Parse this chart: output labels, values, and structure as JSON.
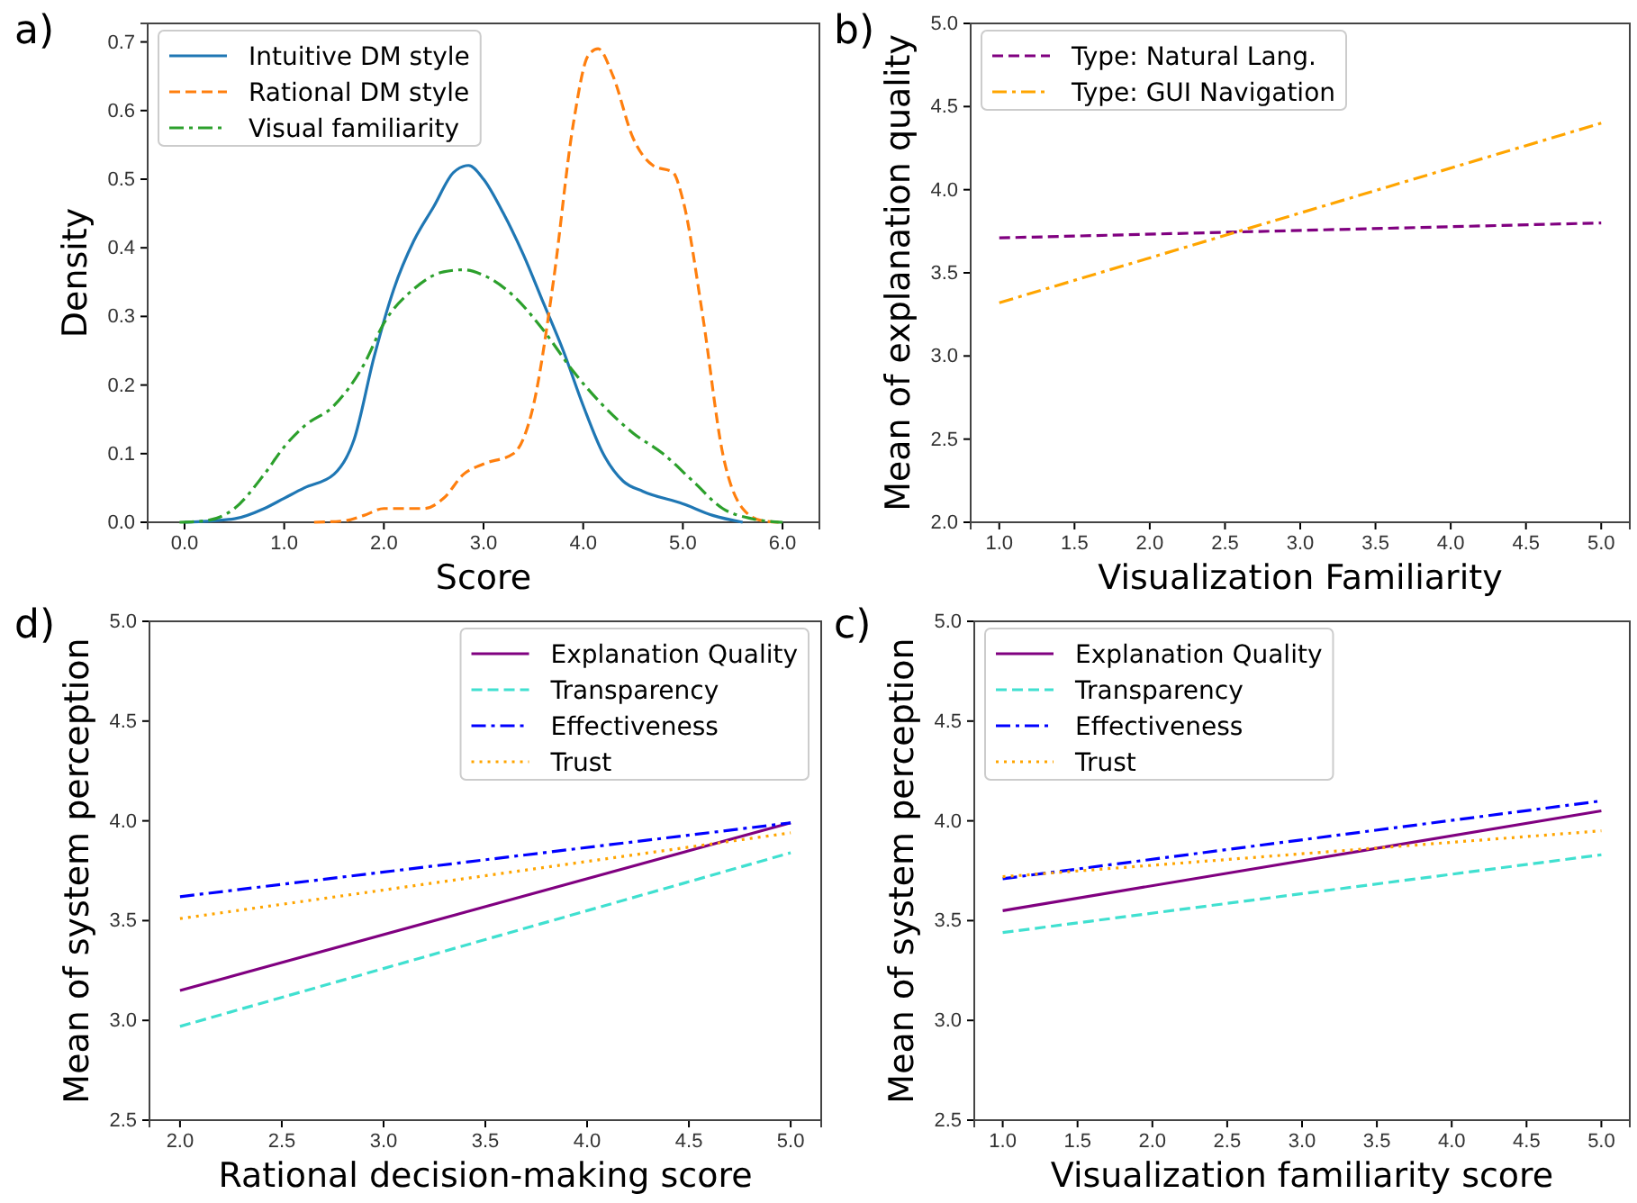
{
  "chart_data": [
    {
      "type": "line",
      "title": "a)",
      "xlabel": "Score",
      "ylabel": "Density",
      "xlim": [
        -0.37,
        6.37
      ],
      "ylim": [
        0,
        0.727
      ],
      "xticks": [
        {
          "value": 0,
          "label": "0.0"
        },
        {
          "value": 1,
          "label": "1.0"
        },
        {
          "value": 2,
          "label": "2.0"
        },
        {
          "value": 3,
          "label": "3.0"
        },
        {
          "value": 4,
          "label": "4.0"
        },
        {
          "value": 5,
          "label": "5.0"
        },
        {
          "value": 6,
          "label": "6.0"
        }
      ],
      "yticks": [
        {
          "value": 0,
          "label": "0.0"
        },
        0.1,
        0.2,
        0.3,
        0.4,
        0.5,
        0.6,
        0.7
      ],
      "legend": "top left",
      "series": [
        {
          "name": "Intuitive DM style",
          "color": "#1f77b4",
          "line_style": "solid",
          "x": [
            0,
            0.5,
            0.8,
            1.0,
            1.2,
            1.5,
            1.7,
            1.9,
            2.1,
            2.3,
            2.5,
            2.7,
            2.85,
            3.0,
            3.2,
            3.4,
            3.6,
            3.8,
            4.0,
            4.2,
            4.4,
            4.6,
            5.0,
            5.3,
            5.6
          ],
          "values": [
            0,
            0.005,
            0.02,
            0.035,
            0.05,
            0.07,
            0.12,
            0.24,
            0.34,
            0.41,
            0.46,
            0.51,
            0.52,
            0.5,
            0.45,
            0.39,
            0.32,
            0.25,
            0.17,
            0.1,
            0.06,
            0.045,
            0.027,
            0.01,
            0
          ]
        },
        {
          "name": "Rational DM style",
          "color": "#ff7f0e",
          "line_style": "dashed",
          "x": [
            1.3,
            1.6,
            1.8,
            2.0,
            2.4,
            2.6,
            2.8,
            3.0,
            3.3,
            3.5,
            3.7,
            3.9,
            4.05,
            4.15,
            4.3,
            4.5,
            4.7,
            4.9,
            5.0,
            5.2,
            5.4,
            5.6,
            5.8,
            6.0
          ],
          "values": [
            0,
            0.002,
            0.01,
            0.02,
            0.02,
            0.035,
            0.07,
            0.085,
            0.1,
            0.17,
            0.35,
            0.58,
            0.68,
            0.69,
            0.65,
            0.56,
            0.52,
            0.51,
            0.47,
            0.3,
            0.1,
            0.02,
            0.002,
            0
          ]
        },
        {
          "name": "Visual familiarity",
          "color": "#2ca02c",
          "line_style": "dashdot",
          "x": [
            -0.05,
            0.2,
            0.5,
            0.8,
            1.0,
            1.2,
            1.5,
            1.8,
            2.0,
            2.3,
            2.6,
            2.8,
            3.0,
            3.3,
            3.6,
            3.9,
            4.2,
            4.5,
            4.8,
            5.1,
            5.4,
            5.7,
            6.0
          ],
          "values": [
            0,
            0.002,
            0.02,
            0.07,
            0.11,
            0.14,
            0.17,
            0.23,
            0.29,
            0.34,
            0.365,
            0.368,
            0.36,
            0.33,
            0.28,
            0.22,
            0.17,
            0.13,
            0.1,
            0.06,
            0.02,
            0.005,
            0
          ]
        }
      ]
    },
    {
      "type": "line",
      "title": "b)",
      "xlabel": "Visualization Familiarity",
      "ylabel": "Mean of explanation quality",
      "xlim": [
        0.81,
        5.19
      ],
      "ylim": [
        2,
        5
      ],
      "xticks": [
        {
          "value": 1,
          "label": "1.0"
        },
        1.5,
        {
          "value": 2,
          "label": "2.0"
        },
        2.5,
        {
          "value": 3,
          "label": "3.0"
        },
        3.5,
        {
          "value": 4,
          "label": "4.0"
        },
        4.5,
        {
          "value": 5,
          "label": "5.0"
        }
      ],
      "yticks": [
        {
          "value": 2,
          "label": "2.0"
        },
        2.5,
        {
          "value": 3,
          "label": "3.0"
        },
        3.5,
        {
          "value": 4,
          "label": "4.0"
        },
        4.5,
        {
          "value": 5,
          "label": "5.0"
        }
      ],
      "legend": "top left",
      "series": [
        {
          "name": "Type: Natural Lang.",
          "color": "#800080",
          "line_style": "dashed",
          "x": [
            1,
            5
          ],
          "values": [
            3.71,
            3.8
          ]
        },
        {
          "name": "Type: GUI Navigation",
          "color": "#ffa500",
          "line_style": "dashdot",
          "x": [
            1,
            5
          ],
          "values": [
            3.32,
            4.4
          ]
        }
      ]
    },
    {
      "type": "line",
      "title": "d)",
      "xlabel": "Rational decision-making score",
      "ylabel": "Mean of system perception",
      "xlim": [
        1.85,
        5.15
      ],
      "ylim": [
        2.5,
        5
      ],
      "xticks": [
        {
          "value": 2,
          "label": "2.0"
        },
        2.5,
        {
          "value": 3,
          "label": "3.0"
        },
        3.5,
        {
          "value": 4,
          "label": "4.0"
        },
        4.5,
        {
          "value": 5,
          "label": "5.0"
        }
      ],
      "yticks": [
        2.5,
        {
          "value": 3,
          "label": "3.0"
        },
        3.5,
        {
          "value": 4,
          "label": "4.0"
        },
        4.5,
        {
          "value": 5,
          "label": "5.0"
        }
      ],
      "legend": "top right",
      "series": [
        {
          "name": "Explanation Quality",
          "color": "#800080",
          "line_style": "solid",
          "x": [
            2,
            5
          ],
          "values": [
            3.15,
            3.99
          ]
        },
        {
          "name": "Transparency",
          "color": "#40e0d0",
          "line_style": "dashed",
          "x": [
            2,
            5
          ],
          "values": [
            2.97,
            3.84
          ]
        },
        {
          "name": "Effectiveness",
          "color": "#0000ff",
          "line_style": "dashdot",
          "x": [
            2,
            5
          ],
          "values": [
            3.62,
            3.99
          ]
        },
        {
          "name": "Trust",
          "color": "#ffa500",
          "line_style": "dotted",
          "x": [
            2,
            5
          ],
          "values": [
            3.51,
            3.94
          ]
        }
      ]
    },
    {
      "type": "line",
      "title": "c)",
      "xlabel": "Visualization familiarity score",
      "ylabel": "Mean of system perception",
      "xlim": [
        0.81,
        5.19
      ],
      "ylim": [
        2.5,
        5
      ],
      "xticks": [
        {
          "value": 1,
          "label": "1.0"
        },
        1.5,
        {
          "value": 2,
          "label": "2.0"
        },
        2.5,
        {
          "value": 3,
          "label": "3.0"
        },
        3.5,
        {
          "value": 4,
          "label": "4.0"
        },
        4.5,
        {
          "value": 5,
          "label": "5.0"
        }
      ],
      "yticks": [
        2.5,
        {
          "value": 3,
          "label": "3.0"
        },
        3.5,
        {
          "value": 4,
          "label": "4.0"
        },
        4.5,
        {
          "value": 5,
          "label": "5.0"
        }
      ],
      "legend": "top left",
      "series": [
        {
          "name": "Explanation Quality",
          "color": "#800080",
          "line_style": "solid",
          "x": [
            1,
            5
          ],
          "values": [
            3.55,
            4.05
          ]
        },
        {
          "name": "Transparency",
          "color": "#40e0d0",
          "line_style": "dashed",
          "x": [
            1,
            5
          ],
          "values": [
            3.44,
            3.83
          ]
        },
        {
          "name": "Effectiveness",
          "color": "#0000ff",
          "line_style": "dashdot",
          "x": [
            1,
            5
          ],
          "values": [
            3.71,
            4.1
          ]
        },
        {
          "name": "Trust",
          "color": "#ffa500",
          "line_style": "dotted",
          "x": [
            1,
            5
          ],
          "values": [
            3.72,
            3.95
          ]
        }
      ]
    }
  ]
}
